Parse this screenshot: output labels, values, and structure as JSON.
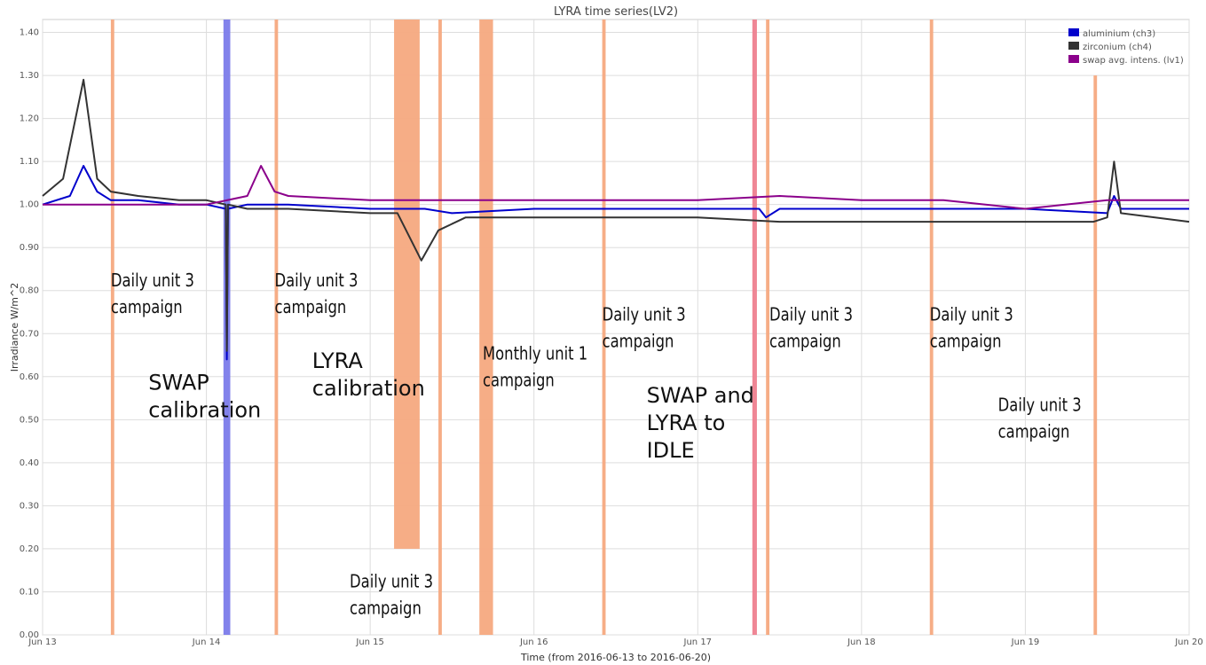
{
  "chart_data": {
    "type": "line",
    "title": "LYRA time series(LV2)",
    "xlabel": "Time (from 2016-06-13 to 2016-06-20)",
    "ylabel": "Irradiance W/m^2",
    "ylim": [
      0,
      1.43
    ],
    "xlim": [
      "2016-06-13T00:00",
      "2016-06-20T00:00"
    ],
    "grid": true,
    "legend_position": "top-right",
    "x_tick_labels": [
      "Jun 13",
      "Jun 14",
      "Jun 15",
      "Jun 16",
      "Jun 17",
      "Jun 18",
      "Jun 19",
      "Jun 20"
    ],
    "y_tick_labels": [
      "0.00",
      "0.10",
      "0.20",
      "0.30",
      "0.40",
      "0.50",
      "0.60",
      "0.70",
      "0.80",
      "0.90",
      "1.00",
      "1.10",
      "1.20",
      "1.30",
      "1.40"
    ],
    "series": [
      {
        "name": "aluminium (ch3)",
        "color": "#0000cc",
        "x": [
          "2016-06-13T00:00",
          "2016-06-13T04:00",
          "2016-06-13T06:00",
          "2016-06-13T08:00",
          "2016-06-13T10:00",
          "2016-06-13T14:00",
          "2016-06-13T20:00",
          "2016-06-14T00:00",
          "2016-06-14T02:50",
          "2016-06-14T03:00",
          "2016-06-14T03:10",
          "2016-06-14T06:00",
          "2016-06-14T12:00",
          "2016-06-15T00:00",
          "2016-06-15T08:00",
          "2016-06-15T12:00",
          "2016-06-16T00:00",
          "2016-06-16T12:00",
          "2016-06-17T00:00",
          "2016-06-17T09:00",
          "2016-06-17T10:00",
          "2016-06-17T12:00",
          "2016-06-18T00:00",
          "2016-06-18T12:00",
          "2016-06-19T00:00",
          "2016-06-19T12:00",
          "2016-06-19T13:00",
          "2016-06-19T14:00",
          "2016-06-20T00:00"
        ],
        "y": [
          1.0,
          1.02,
          1.09,
          1.03,
          1.01,
          1.01,
          1.0,
          1.0,
          0.99,
          0.64,
          0.99,
          1.0,
          1.0,
          0.99,
          0.99,
          0.98,
          0.99,
          0.99,
          0.99,
          0.99,
          0.97,
          0.99,
          0.99,
          0.99,
          0.99,
          0.98,
          1.02,
          0.99,
          0.99
        ]
      },
      {
        "name": "zirconium (ch4)",
        "color": "#333333",
        "x": [
          "2016-06-13T00:00",
          "2016-06-13T03:00",
          "2016-06-13T06:00",
          "2016-06-13T08:00",
          "2016-06-13T10:00",
          "2016-06-13T14:00",
          "2016-06-13T20:00",
          "2016-06-14T00:00",
          "2016-06-14T02:50",
          "2016-06-14T03:00",
          "2016-06-14T03:10",
          "2016-06-14T06:00",
          "2016-06-14T12:00",
          "2016-06-15T00:00",
          "2016-06-15T04:00",
          "2016-06-15T07:30",
          "2016-06-15T10:00",
          "2016-06-15T14:00",
          "2016-06-16T00:00",
          "2016-06-16T12:00",
          "2016-06-17T00:00",
          "2016-06-17T12:00",
          "2016-06-18T00:00",
          "2016-06-18T12:00",
          "2016-06-19T00:00",
          "2016-06-19T10:00",
          "2016-06-19T12:00",
          "2016-06-19T13:00",
          "2016-06-19T14:00",
          "2016-06-20T00:00"
        ],
        "y": [
          1.02,
          1.06,
          1.29,
          1.06,
          1.03,
          1.02,
          1.01,
          1.01,
          1.0,
          0.66,
          1.0,
          0.99,
          0.99,
          0.98,
          0.98,
          0.87,
          0.94,
          0.97,
          0.97,
          0.97,
          0.97,
          0.96,
          0.96,
          0.96,
          0.96,
          0.96,
          0.97,
          1.1,
          0.98,
          0.96
        ]
      },
      {
        "name": "swap avg. intens. (lv1)",
        "color": "#8b008b",
        "x": [
          "2016-06-13T00:00",
          "2016-06-13T12:00",
          "2016-06-14T00:00",
          "2016-06-14T06:00",
          "2016-06-14T08:00",
          "2016-06-14T10:00",
          "2016-06-14T12:00",
          "2016-06-15T00:00",
          "2016-06-15T12:00",
          "2016-06-16T00:00",
          "2016-06-16T12:00",
          "2016-06-17T00:00",
          "2016-06-17T12:00",
          "2016-06-18T00:00",
          "2016-06-18T12:00",
          "2016-06-19T00:00",
          "2016-06-19T12:00",
          "2016-06-20T00:00"
        ],
        "y": [
          1.0,
          1.0,
          1.0,
          1.02,
          1.09,
          1.03,
          1.02,
          1.01,
          1.01,
          1.01,
          1.01,
          1.01,
          1.02,
          1.01,
          1.01,
          0.99,
          1.01,
          1.01
        ]
      }
    ],
    "bands": [
      {
        "kind": "daily",
        "color": "#f5a97f",
        "x_start": "2016-06-13T10:00",
        "x_end": "2016-06-13T10:30"
      },
      {
        "kind": "swap-calibration",
        "color": "#7b7bea",
        "x_start": "2016-06-14T02:30",
        "x_end": "2016-06-14T03:30"
      },
      {
        "kind": "daily",
        "color": "#f5a97f",
        "x_start": "2016-06-14T10:00",
        "x_end": "2016-06-14T10:30"
      },
      {
        "kind": "lyra-calibration",
        "color": "#f5a97f",
        "x_start": "2016-06-15T03:30",
        "x_end": "2016-06-15T07:15",
        "y_bottom": 0.2
      },
      {
        "kind": "daily",
        "color": "#f5a97f",
        "x_start": "2016-06-15T10:00",
        "x_end": "2016-06-15T10:30"
      },
      {
        "kind": "monthly",
        "color": "#f5a97f",
        "x_start": "2016-06-15T16:00",
        "x_end": "2016-06-15T18:00"
      },
      {
        "kind": "daily",
        "color": "#f5a97f",
        "x_start": "2016-06-16T10:00",
        "x_end": "2016-06-16T10:30"
      },
      {
        "kind": "idle",
        "color": "#ee7f8f",
        "x_start": "2016-06-17T08:00",
        "x_end": "2016-06-17T08:40"
      },
      {
        "kind": "daily",
        "color": "#f5a97f",
        "x_start": "2016-06-17T10:00",
        "x_end": "2016-06-17T10:30"
      },
      {
        "kind": "daily",
        "color": "#f5a97f",
        "x_start": "2016-06-18T10:00",
        "x_end": "2016-06-18T10:30"
      },
      {
        "kind": "daily",
        "color": "#f5a97f",
        "x_start": "2016-06-19T10:00",
        "x_end": "2016-06-19T10:30",
        "y_top": 1.3
      }
    ],
    "annotations": [
      {
        "text": [
          "Daily unit 3",
          "campaign"
        ],
        "x": "2016-06-13T10:00",
        "y": 0.81,
        "size": "medium"
      },
      {
        "text": [
          "SWAP",
          "calibration"
        ],
        "x": "2016-06-13T15:30",
        "y": 0.57,
        "size": "large"
      },
      {
        "text": [
          "Daily unit 3",
          "campaign"
        ],
        "x": "2016-06-14T10:00",
        "y": 0.81,
        "size": "medium"
      },
      {
        "text": [
          "LYRA",
          "calibration"
        ],
        "x": "2016-06-14T15:30",
        "y": 0.62,
        "size": "large"
      },
      {
        "text": [
          "Daily unit 3",
          "campaign"
        ],
        "x": "2016-06-14T21:00",
        "y": 0.11,
        "size": "medium"
      },
      {
        "text": [
          "Monthly unit 1",
          "campaign"
        ],
        "x": "2016-06-15T16:30",
        "y": 0.64,
        "size": "medium"
      },
      {
        "text": [
          "Daily unit 3",
          "campaign"
        ],
        "x": "2016-06-16T10:00",
        "y": 0.73,
        "size": "medium"
      },
      {
        "text": [
          "SWAP and",
          "LYRA to",
          "IDLE"
        ],
        "x": "2016-06-16T16:30",
        "y": 0.54,
        "size": "large"
      },
      {
        "text": [
          "Daily unit 3",
          "campaign"
        ],
        "x": "2016-06-17T10:30",
        "y": 0.73,
        "size": "medium"
      },
      {
        "text": [
          "Daily unit 3",
          "campaign"
        ],
        "x": "2016-06-18T10:00",
        "y": 0.73,
        "size": "medium"
      },
      {
        "text": [
          "Daily unit 3",
          "campaign"
        ],
        "x": "2016-06-18T20:00",
        "y": 0.52,
        "size": "medium"
      }
    ]
  }
}
